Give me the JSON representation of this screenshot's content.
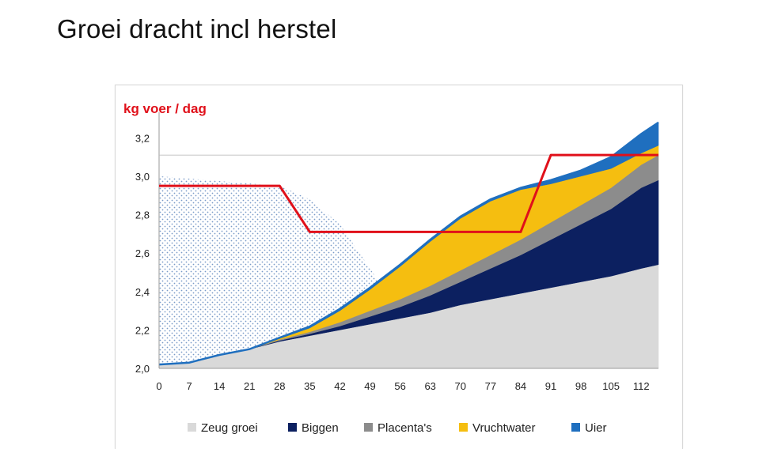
{
  "page": {
    "title": "Groei dracht incl herstel"
  },
  "chart_data": {
    "type": "area",
    "ylabel": "kg voer / dag",
    "xlabel": "",
    "ylim": [
      2.0,
      3.3
    ],
    "yticks": [
      "2,0",
      "2,2",
      "2,4",
      "2,6",
      "2,8",
      "3,0",
      "3,2"
    ],
    "ytick_values": [
      2.0,
      2.2,
      2.4,
      2.6,
      2.8,
      3.0,
      3.2
    ],
    "x": [
      0,
      7,
      14,
      21,
      28,
      35,
      42,
      49,
      56,
      63,
      70,
      77,
      84,
      91,
      98,
      105,
      112,
      116
    ],
    "xtick_values": [
      0,
      7,
      14,
      21,
      28,
      35,
      42,
      49,
      56,
      63,
      70,
      77,
      84,
      91,
      98,
      105,
      112
    ],
    "xticks": [
      "0",
      "7",
      "14",
      "21",
      "28",
      "35",
      "42",
      "49",
      "56",
      "63",
      "70",
      "77",
      "84",
      "91",
      "98",
      "105",
      "112"
    ],
    "stacked_series": [
      {
        "name": "Zeug groei",
        "color": "#d9d9d9",
        "values": [
          2.02,
          2.03,
          2.07,
          2.1,
          2.14,
          2.17,
          2.2,
          2.23,
          2.26,
          2.29,
          2.33,
          2.36,
          2.39,
          2.42,
          2.45,
          2.48,
          2.52,
          2.54
        ]
      },
      {
        "name": "Biggen",
        "color": "#0c2060",
        "values": [
          0.0,
          0.0,
          0.0,
          0.0,
          0.005,
          0.01,
          0.02,
          0.04,
          0.06,
          0.09,
          0.12,
          0.16,
          0.2,
          0.25,
          0.3,
          0.35,
          0.42,
          0.44
        ]
      },
      {
        "name": "Placenta's",
        "color": "#8c8c8c",
        "values": [
          0.0,
          0.0,
          0.0,
          0.0,
          0.005,
          0.01,
          0.02,
          0.03,
          0.04,
          0.05,
          0.06,
          0.07,
          0.08,
          0.09,
          0.1,
          0.11,
          0.12,
          0.13
        ]
      },
      {
        "name": "Vruchtwater",
        "color": "#f5be10",
        "values": [
          0.0,
          0.0,
          0.0,
          0.0,
          0.005,
          0.02,
          0.06,
          0.11,
          0.17,
          0.23,
          0.27,
          0.28,
          0.26,
          0.2,
          0.15,
          0.1,
          0.06,
          0.05
        ]
      },
      {
        "name": "Uier",
        "color": "#1f6fbf",
        "values": [
          0.0,
          0.0,
          0.0,
          0.0,
          0.005,
          0.008,
          0.01,
          0.01,
          0.01,
          0.01,
          0.01,
          0.01,
          0.01,
          0.02,
          0.03,
          0.06,
          0.1,
          0.12
        ]
      }
    ],
    "hatched_area": {
      "x": [
        0,
        28,
        35,
        42,
        49,
        52
      ],
      "values": [
        3.0,
        2.95,
        2.88,
        2.75,
        2.52,
        2.42
      ]
    },
    "feed_line": {
      "color": "#e0101a",
      "x": [
        0,
        28,
        35,
        84,
        91,
        116
      ],
      "values": [
        2.95,
        2.95,
        2.71,
        2.71,
        3.11,
        3.11
      ]
    },
    "legend": [
      "Zeug groei",
      "Biggen",
      "Placenta's",
      "Vruchtwater",
      "Uier"
    ],
    "legend_position": "bottom",
    "grid": false
  }
}
